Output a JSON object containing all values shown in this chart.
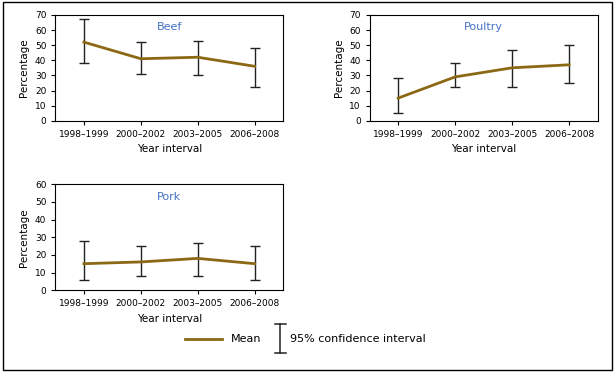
{
  "x_labels": [
    "1998–1999",
    "2000–2002",
    "2003–2005",
    "2006–2008"
  ],
  "x_positions": [
    0,
    1,
    2,
    3
  ],
  "beef": {
    "title": "Beef",
    "mean": [
      52,
      41,
      42,
      36
    ],
    "ci_low": [
      38,
      31,
      30,
      22
    ],
    "ci_high": [
      67,
      52,
      53,
      48
    ],
    "ylim": [
      0,
      70
    ],
    "yticks": [
      0,
      10,
      20,
      30,
      40,
      50,
      60,
      70
    ]
  },
  "poultry": {
    "title": "Poultry",
    "mean": [
      15,
      29,
      35,
      37
    ],
    "ci_low": [
      5,
      22,
      22,
      25
    ],
    "ci_high": [
      28,
      38,
      47,
      50
    ],
    "ylim": [
      0,
      70
    ],
    "yticks": [
      0,
      10,
      20,
      30,
      40,
      50,
      60,
      70
    ]
  },
  "pork": {
    "title": "Pork",
    "mean": [
      15,
      16,
      18,
      15
    ],
    "ci_low": [
      6,
      8,
      8,
      6
    ],
    "ci_high": [
      28,
      25,
      27,
      25
    ],
    "ylim": [
      0,
      60
    ],
    "yticks": [
      0,
      10,
      20,
      30,
      40,
      50,
      60
    ]
  },
  "line_color": "#8B6914",
  "ci_color": "#222222",
  "xlabel": "Year interval",
  "ylabel": "Percentage",
  "legend_mean": "Mean",
  "legend_ci": "95% confidence interval",
  "title_color": "#4472C4"
}
